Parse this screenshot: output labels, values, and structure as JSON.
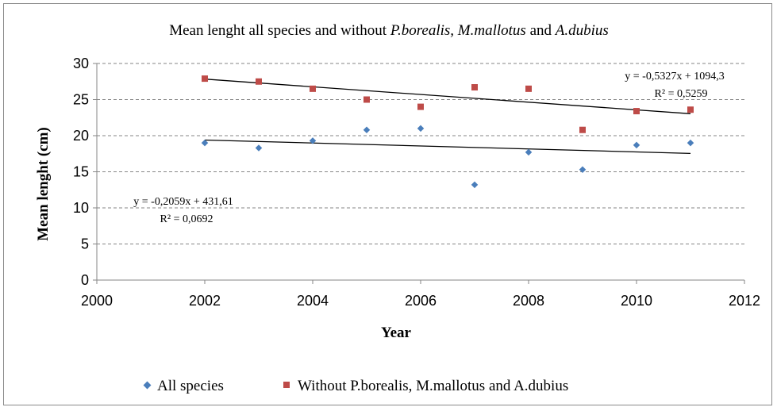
{
  "chart_data": {
    "type": "scatter",
    "title_parts": [
      {
        "text": "Mean lenght all species and without ",
        "italic": false
      },
      {
        "text": "P.borealis, M.mallotus",
        "italic": true
      },
      {
        "text": " and ",
        "italic": false
      },
      {
        "text": "A.dubius",
        "italic": true
      }
    ],
    "xlabel": "Year",
    "ylabel": "Mean lenght (cm)",
    "xlim": [
      2000,
      2012
    ],
    "ylim": [
      0,
      30
    ],
    "xticks": [
      2000,
      2002,
      2004,
      2006,
      2008,
      2010,
      2012
    ],
    "yticks": [
      0,
      5,
      10,
      15,
      20,
      25,
      30
    ],
    "grid": "horizontal dashed",
    "legend_position": "bottom",
    "series": [
      {
        "name": "All species",
        "marker": "diamond",
        "color": "#4a7ebb",
        "x": [
          2002,
          2003,
          2004,
          2005,
          2006,
          2007,
          2008,
          2009,
          2010,
          2011
        ],
        "y": [
          19.0,
          18.3,
          19.3,
          20.8,
          21.0,
          13.2,
          17.7,
          15.3,
          18.7,
          19.0
        ],
        "trendline": {
          "slope": -0.2059,
          "intercept": 431.61,
          "x_range": [
            2002,
            2011
          ],
          "equation": "y = -0,2059x + 431,61",
          "r2": "R² = 0,0692"
        }
      },
      {
        "name": "Without P.borealis, M.mallotus and A.dubius",
        "marker": "square",
        "color": "#be4b48",
        "x": [
          2002,
          2003,
          2004,
          2005,
          2006,
          2007,
          2008,
          2009,
          2010,
          2011
        ],
        "y": [
          27.9,
          27.5,
          26.5,
          25.0,
          24.0,
          26.7,
          26.5,
          20.8,
          23.4,
          23.6
        ],
        "trendline": {
          "slope": -0.5327,
          "intercept": 1094.3,
          "x_range": [
            2002,
            2011
          ],
          "equation": "y = -0,5327x + 1094,3",
          "r2": "R² = 0,5259"
        }
      }
    ]
  }
}
